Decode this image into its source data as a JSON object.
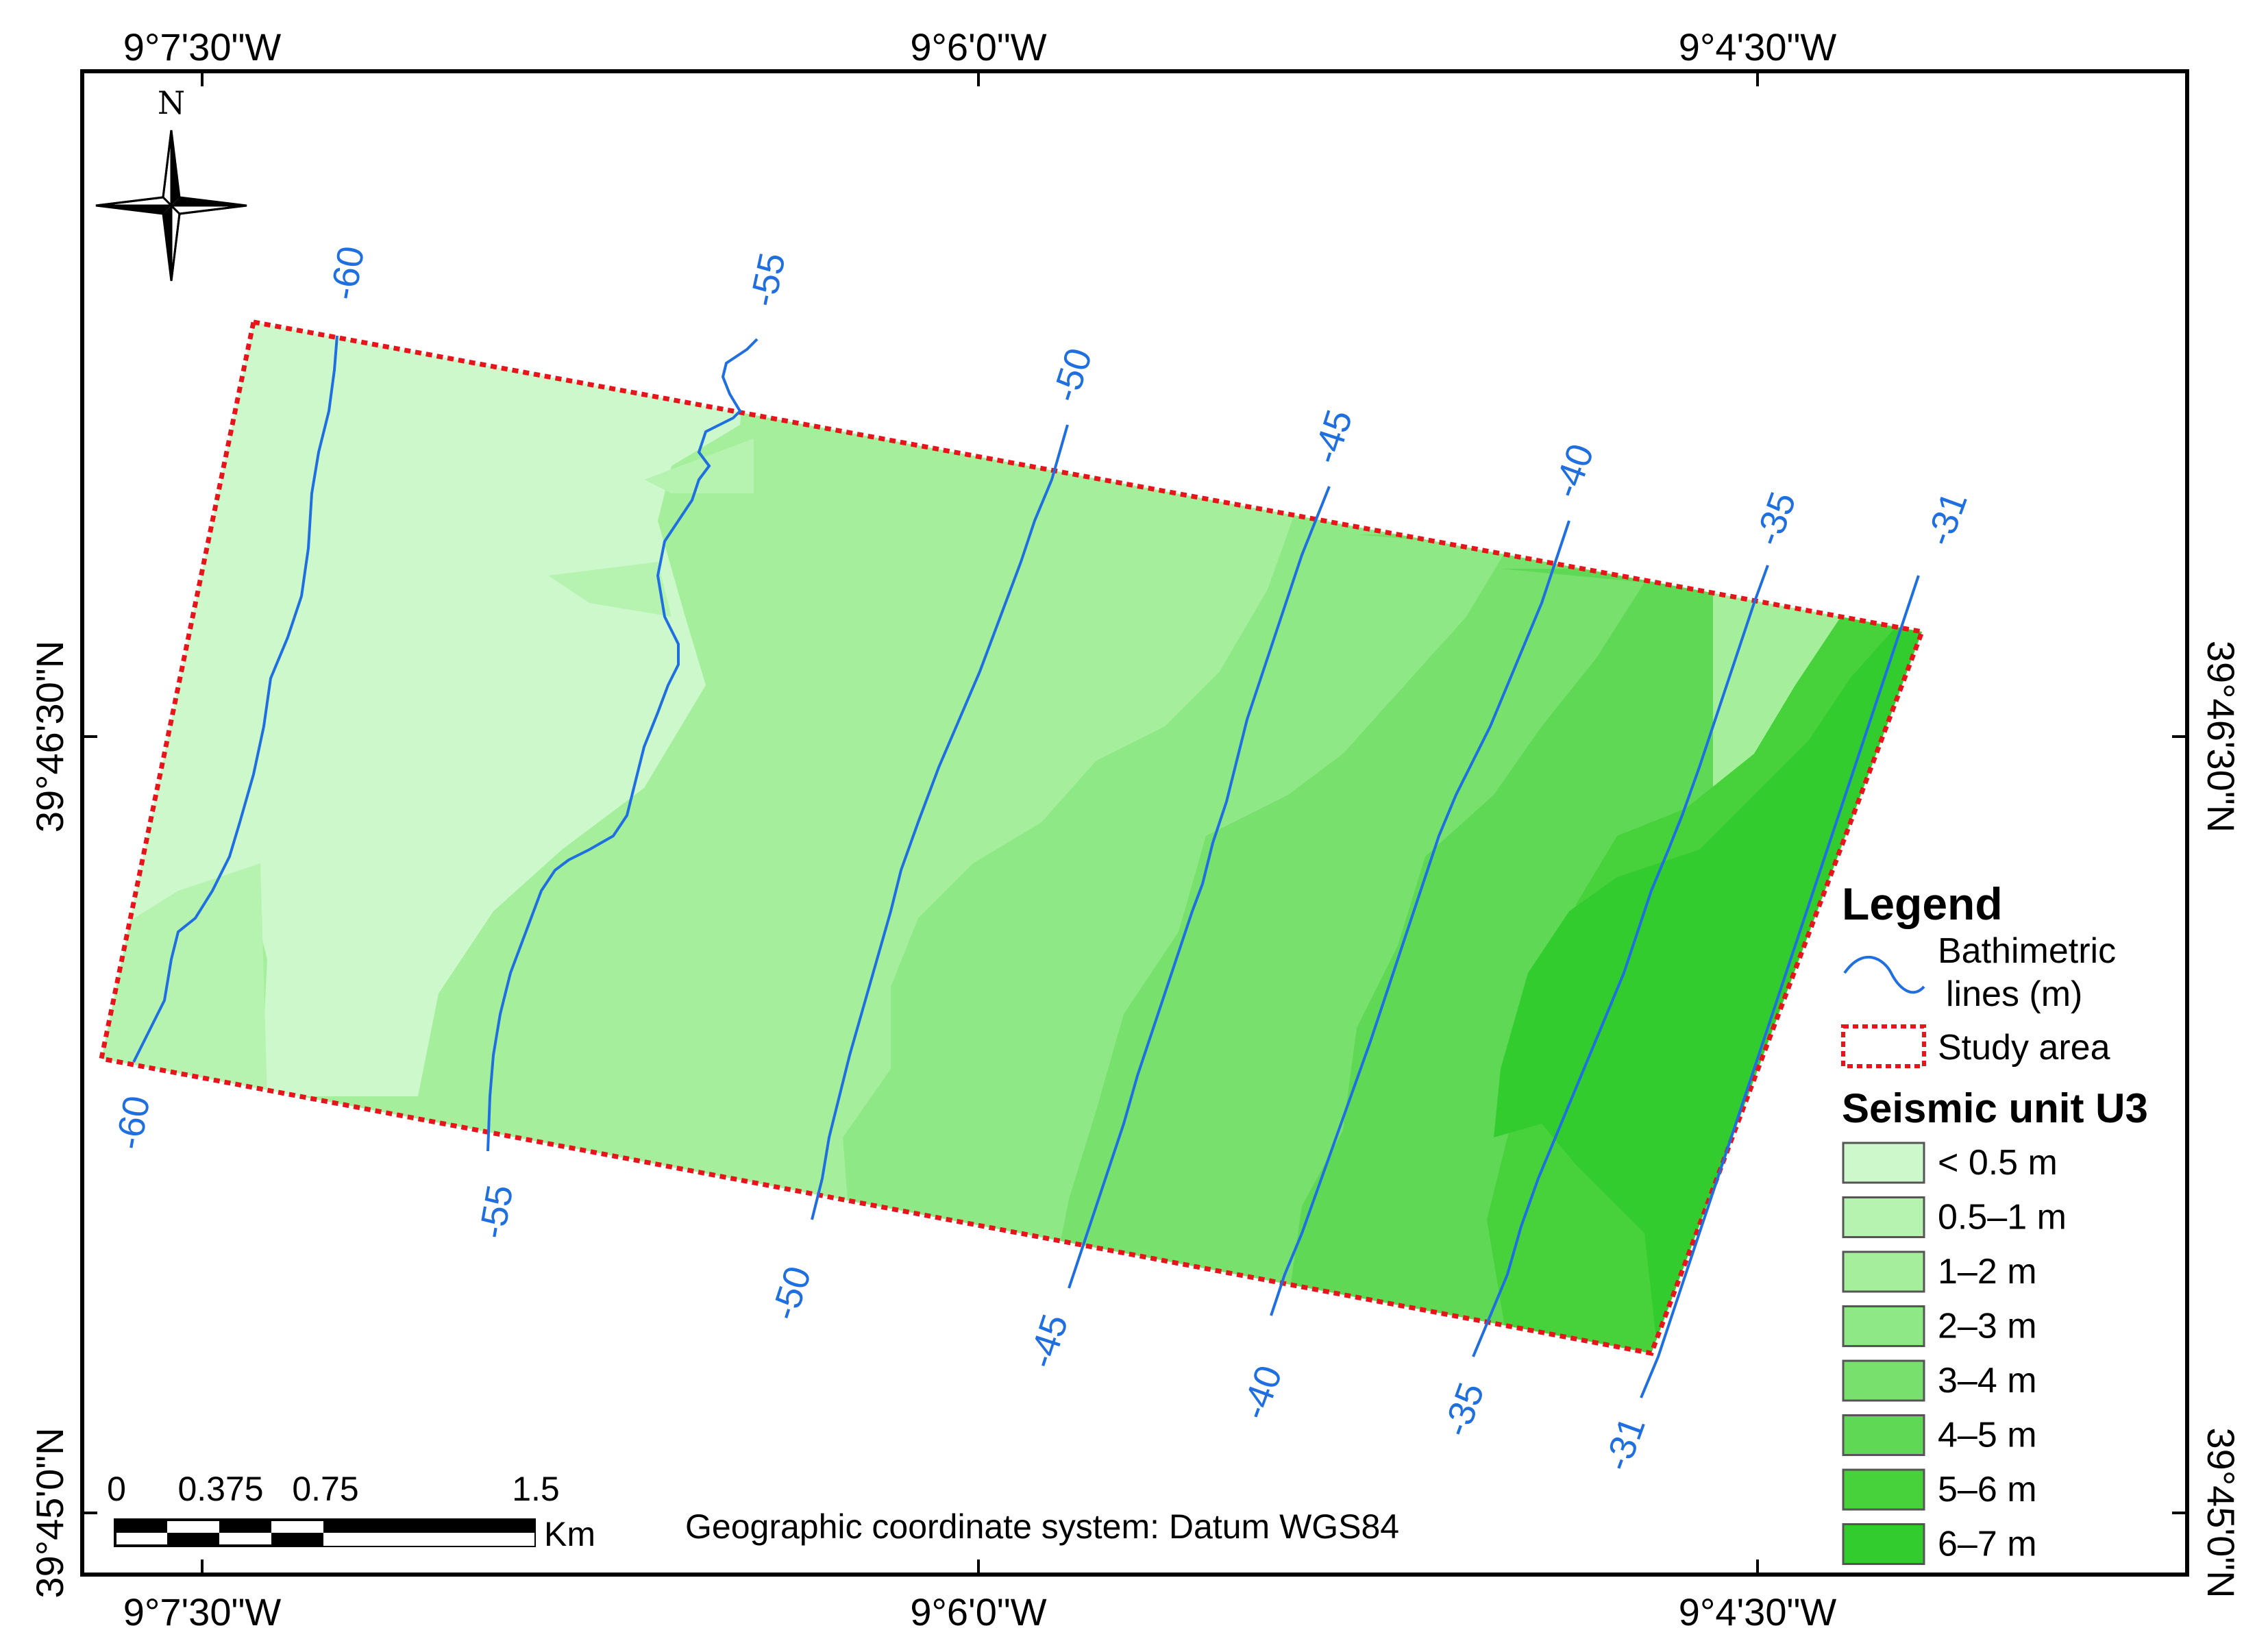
{
  "graticule": {
    "top_lon": [
      "9°7'30\"W",
      "9°6'0\"W",
      "9°4'30\"W"
    ],
    "bottom_lon": [
      "9°7'30\"W",
      "9°6'0\"W",
      "9°4'30\"W"
    ],
    "left_lat": [
      "39°46'30\"N",
      "39°45'0\"N"
    ],
    "right_lat": [
      "39°46'30\"N",
      "39°45'0\"N"
    ]
  },
  "north_arrow": {
    "label": "N",
    "icon": "compass-rose-icon"
  },
  "contours": {
    "color": "#1f6fe0",
    "top_labels": [
      "-60",
      "-55",
      "-50",
      "-45",
      "-40",
      "-35",
      "-31"
    ],
    "bottom_labels": [
      "-60",
      "-55",
      "-50",
      "-45",
      "-40",
      "-35",
      "-31"
    ],
    "depths": [
      -60,
      -55,
      -50,
      -45,
      -40,
      -35,
      -31
    ]
  },
  "legend": {
    "title": "Legend",
    "bathymetric_label_1": "Bathimetric",
    "bathymetric_label_2": "lines (m)",
    "study_area_label": "Study area",
    "seismic_title": "Seismic unit U3",
    "classes": [
      {
        "label": "< 0.5 m",
        "color": "#ccf8cc"
      },
      {
        "label": "0.5–1 m",
        "color": "#b6f3b1"
      },
      {
        "label": "1–2 m",
        "color": "#a5ef9c"
      },
      {
        "label": "2–3 m",
        "color": "#8fe886"
      },
      {
        "label": "3–4 m",
        "color": "#78e06d"
      },
      {
        "label": "4–5 m",
        "color": "#5fd855"
      },
      {
        "label": "5–6 m",
        "color": "#47d23c"
      },
      {
        "label": "6–7 m",
        "color": "#33cc2e"
      }
    ]
  },
  "study_area_color": "#e8141c",
  "scale_bar": {
    "labels": [
      "0",
      "0.375",
      "0.75",
      "1.5"
    ],
    "unit": "Km"
  },
  "crs_note": "Geographic coordinate system: Datum WGS84"
}
